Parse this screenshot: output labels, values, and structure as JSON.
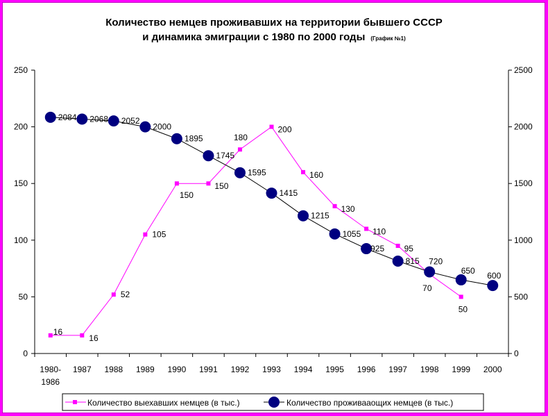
{
  "chart_data": {
    "type": "line",
    "title_line1": "Количество немцев проживавших на территории бывшего СССР",
    "title_line2": "и динамика эмиграции с 1980 по 2000 годы",
    "subtitle": "(График №1)",
    "categories": [
      "1980-1986",
      "1987",
      "1988",
      "1989",
      "1990",
      "1991",
      "1992",
      "1993",
      "1994",
      "1995",
      "1996",
      "1997",
      "1998",
      "1999",
      "2000"
    ],
    "category_lines": [
      [
        "1980-",
        "1986"
      ],
      [
        "1987"
      ],
      [
        "1988"
      ],
      [
        "1989"
      ],
      [
        "1990"
      ],
      [
        "1991"
      ],
      [
        "1992"
      ],
      [
        "1993"
      ],
      [
        "1994"
      ],
      [
        "1995"
      ],
      [
        "1996"
      ],
      [
        "1997"
      ],
      [
        "1998"
      ],
      [
        "1999"
      ],
      [
        "2000"
      ]
    ],
    "y_left": {
      "min": 0,
      "max": 250,
      "ticks": [
        0,
        50,
        100,
        150,
        200,
        250
      ]
    },
    "y_right": {
      "min": 0,
      "max": 2500,
      "ticks": [
        0,
        500,
        1000,
        1500,
        2000,
        2500
      ]
    },
    "grid": false,
    "legend_position": "bottom",
    "series": [
      {
        "name": "Количество выехавших немцев (в тыс.)",
        "axis": "left",
        "color": "#ff00ff",
        "marker": "square",
        "x": [
          "1980-1986",
          "1987",
          "1988",
          "1989",
          "1990",
          "1991",
          "1992",
          "1993",
          "1994",
          "1995",
          "1996",
          "1997",
          "1998",
          "1999"
        ],
        "values": [
          16,
          16,
          52,
          105,
          150,
          150,
          180,
          200,
          160,
          130,
          110,
          95,
          70,
          50
        ],
        "labels": [
          "16",
          "16",
          "52",
          "105",
          "150",
          "150",
          "180",
          "200",
          "160",
          "130",
          "110",
          "95",
          "70",
          "50"
        ]
      },
      {
        "name": "Количество проживааощих немцев (в тыс.)",
        "axis": "right",
        "color": "#000080",
        "marker": "circle",
        "x": [
          "1980-1986",
          "1987",
          "1988",
          "1989",
          "1990",
          "1991",
          "1992",
          "1993",
          "1994",
          "1995",
          "1996",
          "1997",
          "1998",
          "1999",
          "2000"
        ],
        "values": [
          2084,
          2068,
          2052,
          2000,
          1895,
          1745,
          1595,
          1415,
          1215,
          1055,
          925,
          815,
          720,
          650,
          600
        ],
        "labels": [
          "2084",
          "2068",
          "2052",
          "2000",
          "1895",
          "1745",
          "1595",
          "1415",
          "1215",
          "1055",
          "925",
          "815",
          "720",
          "650",
          "600"
        ]
      }
    ]
  }
}
